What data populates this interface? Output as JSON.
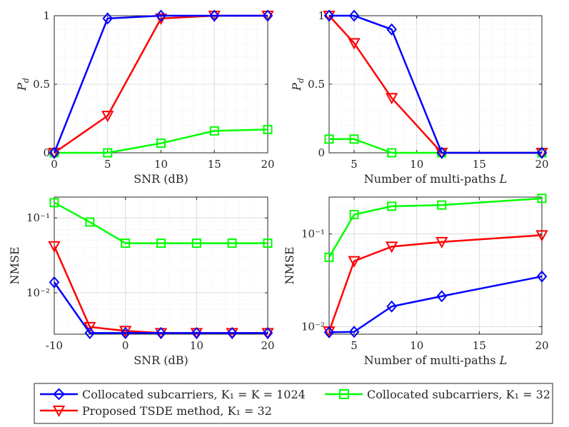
{
  "colors": {
    "blue": "#0000ff",
    "red": "#ff0000",
    "green": "#00ff00",
    "grid": "#e6e6e6",
    "axis": "#262626"
  },
  "legend": [
    {
      "series_key": "collocated_full",
      "label": "Collocated subcarriers, K₁ = K = 1024",
      "color": "#0000ff",
      "marker": "diamond"
    },
    {
      "series_key": "collocated_32",
      "label": "Collocated subcarriers, K₁ = 32",
      "color": "#00ff00",
      "marker": "square"
    },
    {
      "series_key": "proposed_tsde",
      "label": "Proposed TSDE method, K₁ = 32",
      "color": "#ff0000",
      "marker": "triangle-down"
    }
  ],
  "chart_data": [
    {
      "id": "pd-vs-snr",
      "type": "line",
      "xlabel": "SNR (dB)",
      "ylabel": "P_d",
      "xlim": [
        0,
        20
      ],
      "ylim": [
        0,
        1
      ],
      "yscale": "linear",
      "xticks": [
        0,
        5,
        10,
        15,
        20
      ],
      "xtick_labels": [
        "0",
        "5",
        "10",
        "15",
        "20"
      ],
      "yticks": [
        0,
        0.5,
        1
      ],
      "ytick_labels": [
        "0",
        "0.5",
        "1"
      ],
      "series": [
        {
          "key": "collocated_full",
          "x": [
            0,
            5,
            10,
            15,
            20
          ],
          "values": [
            0,
            0.98,
            1,
            1,
            1
          ]
        },
        {
          "key": "proposed_tsde",
          "x": [
            0,
            5,
            10,
            15,
            20
          ],
          "values": [
            0,
            0.27,
            0.98,
            1,
            1
          ]
        },
        {
          "key": "collocated_32",
          "x": [
            0,
            5,
            10,
            15,
            20
          ],
          "values": [
            0,
            0,
            0.07,
            0.16,
            0.17
          ]
        }
      ]
    },
    {
      "id": "pd-vs-paths",
      "type": "line",
      "xlabel": "Number of multi-paths L",
      "ylabel": "P_d",
      "xlim": [
        3,
        20
      ],
      "ylim": [
        0,
        1
      ],
      "yscale": "linear",
      "xticks": [
        5,
        10,
        15,
        20
      ],
      "xtick_labels": [
        "5",
        "10",
        "15",
        "20"
      ],
      "yticks": [
        0,
        0.5,
        1
      ],
      "ytick_labels": [
        "0",
        "0.5",
        "1"
      ],
      "series": [
        {
          "key": "collocated_full",
          "x": [
            3,
            5,
            8,
            12,
            20
          ],
          "values": [
            1,
            1,
            0.9,
            0,
            0
          ]
        },
        {
          "key": "proposed_tsde",
          "x": [
            3,
            5,
            8,
            12,
            20
          ],
          "values": [
            1,
            0.8,
            0.4,
            0,
            0
          ]
        },
        {
          "key": "collocated_32",
          "x": [
            3,
            5,
            8,
            12,
            20
          ],
          "values": [
            0.1,
            0.1,
            0,
            0,
            0
          ]
        }
      ]
    },
    {
      "id": "nmse-vs-snr",
      "type": "line",
      "xlabel": "SNR (dB)",
      "ylabel": "NMSE",
      "xlim": [
        -10,
        20
      ],
      "ylim": [
        0.0028,
        0.19
      ],
      "yscale": "log",
      "xticks": [
        -10,
        0,
        10,
        20
      ],
      "xtick_labels": [
        "-10",
        "0",
        "10",
        "20"
      ],
      "yticks": [
        0.01,
        0.1
      ],
      "ytick_labels": [
        "10⁻²",
        "10⁻¹"
      ],
      "series": [
        {
          "key": "collocated_full",
          "x": [
            -10,
            -5,
            0,
            5,
            10,
            15,
            20
          ],
          "values": [
            0.0138,
            0.0029,
            0.0029,
            0.0029,
            0.0029,
            0.0029,
            0.0029
          ]
        },
        {
          "key": "proposed_tsde",
          "x": [
            -10,
            -5,
            0,
            5,
            10,
            15,
            20
          ],
          "values": [
            0.042,
            0.0035,
            0.0031,
            0.0029,
            0.0029,
            0.0029,
            0.0029
          ]
        },
        {
          "key": "collocated_32",
          "x": [
            -10,
            -5,
            0,
            5,
            10,
            15,
            20
          ],
          "values": [
            0.16,
            0.088,
            0.046,
            0.046,
            0.046,
            0.046,
            0.046
          ]
        }
      ]
    },
    {
      "id": "nmse-vs-paths",
      "type": "line",
      "xlabel": "Number of multi-paths L",
      "ylabel": "NMSE",
      "xlim": [
        3,
        20
      ],
      "ylim": [
        0.0083,
        0.25
      ],
      "yscale": "log",
      "xticks": [
        5,
        10,
        15,
        20
      ],
      "xtick_labels": [
        "5",
        "10",
        "15",
        "20"
      ],
      "yticks": [
        0.01,
        0.1
      ],
      "ytick_labels": [
        "10⁻²",
        "10⁻¹"
      ],
      "series": [
        {
          "key": "collocated_full",
          "x": [
            3,
            5,
            8,
            12,
            20
          ],
          "values": [
            0.0087,
            0.0088,
            0.0165,
            0.0213,
            0.0348
          ]
        },
        {
          "key": "proposed_tsde",
          "x": [
            3,
            5,
            8,
            12,
            20
          ],
          "values": [
            0.0089,
            0.051,
            0.073,
            0.082,
            0.097
          ]
        },
        {
          "key": "collocated_32",
          "x": [
            3,
            5,
            8,
            12,
            20
          ],
          "values": [
            0.056,
            0.162,
            0.199,
            0.205,
            0.242
          ]
        }
      ]
    }
  ]
}
